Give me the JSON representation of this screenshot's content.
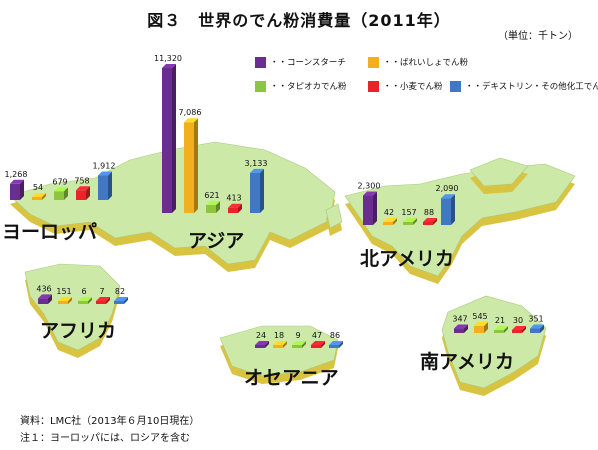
{
  "chart_data": {
    "type": "bar",
    "title": "図３　世界のでん粉消費量（2011年）",
    "unit_label": "（単位：千トン）",
    "series": [
      {
        "name": "・・コーンスターチ",
        "color": "#6b2d8f"
      },
      {
        "name": "・・ばれいしょでん粉",
        "color": "#f2b01e"
      },
      {
        "name": "・・タピオカでん粉",
        "color": "#8cc63f"
      },
      {
        "name": "・・小麦でん粉",
        "color": "#e8232a"
      },
      {
        "name": "・・デキストリン・その他化工でん粉",
        "color": "#3f78c4"
      }
    ],
    "regions": [
      {
        "name": "ヨーロッパ",
        "values": [
          1268,
          54,
          679,
          758,
          1912
        ],
        "labels": [
          "1,268",
          "54",
          "679",
          "758",
          "1,912"
        ]
      },
      {
        "name": "アジア",
        "values": [
          11320,
          7086,
          621,
          413,
          3133
        ],
        "labels": [
          "11,320",
          "7,086",
          "621",
          "413",
          "3,133"
        ]
      },
      {
        "name": "北アメリカ",
        "values": [
          2300,
          42,
          157,
          88,
          2090
        ],
        "labels": [
          "2,300",
          "42",
          "157",
          "88",
          "2,090"
        ]
      },
      {
        "name": "アフリカ",
        "values": [
          436,
          151,
          6,
          7,
          82
        ],
        "labels": [
          "436",
          "151",
          "6",
          "7",
          "82"
        ]
      },
      {
        "name": "オセアニア",
        "values": [
          24,
          18,
          9,
          47,
          86
        ],
        "labels": [
          "24",
          "18",
          "9",
          "47",
          "86"
        ]
      },
      {
        "name": "南アメリカ",
        "values": [
          347,
          545,
          21,
          30,
          351
        ],
        "labels": [
          "347",
          "545",
          "21",
          "30",
          "351"
        ]
      }
    ],
    "map_color": "#cde9a8",
    "map_side_color": "#d8c440"
  },
  "footer": {
    "source": "資料：LMC社（2013年６月10日現在）",
    "note": "注１：ヨーロッパには、ロシアを含む"
  }
}
